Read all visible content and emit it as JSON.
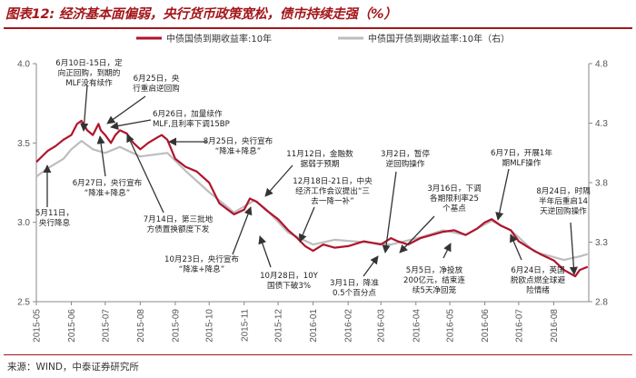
{
  "title": "图表12: 经济基本面偏弱，央行货币政策宽松，债市持续走强（%）",
  "source": "来源：WIND，中泰证券研究所",
  "colors": {
    "brand": "#a3171b",
    "series_main": "#b0142b",
    "series_secondary": "#bdbdbd",
    "text": "#222222"
  },
  "chart_data": {
    "type": "line",
    "x_labels": [
      "2015-05",
      "2015-06",
      "2015-07",
      "2015-08",
      "2015-09",
      "2015-10",
      "2015-11",
      "2015-12",
      "2016-01",
      "2016-02",
      "2016-03",
      "2016-04",
      "2016-05",
      "2016-06",
      "2016-07",
      "2016-08"
    ],
    "ylim_left": [
      2.5,
      4.0
    ],
    "yticks_left": [
      "2.5",
      "3.0",
      "3.5",
      "4.0"
    ],
    "ylim_right": [
      2.8,
      4.8
    ],
    "yticks_right": [
      "2.8",
      "3.3",
      "3.8",
      "4.3",
      "4.8"
    ],
    "legend_position": "top",
    "series": [
      {
        "name": "中债国债到期收益率:10年",
        "axis": "left",
        "points": [
          [
            "2015-05-01",
            3.38
          ],
          [
            "2015-05-11",
            3.45
          ],
          [
            "2015-05-18",
            3.48
          ],
          [
            "2015-05-25",
            3.52
          ],
          [
            "2015-06-01",
            3.55
          ],
          [
            "2015-06-06",
            3.62
          ],
          [
            "2015-06-10",
            3.64
          ],
          [
            "2015-06-15",
            3.58
          ],
          [
            "2015-06-20",
            3.55
          ],
          [
            "2015-06-25",
            3.62
          ],
          [
            "2015-06-27",
            3.58
          ],
          [
            "2015-07-01",
            3.55
          ],
          [
            "2015-07-06",
            3.5
          ],
          [
            "2015-07-10",
            3.55
          ],
          [
            "2015-07-14",
            3.58
          ],
          [
            "2015-07-20",
            3.56
          ],
          [
            "2015-07-26",
            3.5
          ],
          [
            "2015-08-01",
            3.46
          ],
          [
            "2015-08-08",
            3.5
          ],
          [
            "2015-08-15",
            3.53
          ],
          [
            "2015-08-20",
            3.55
          ],
          [
            "2015-08-25",
            3.52
          ],
          [
            "2015-09-01",
            3.4
          ],
          [
            "2015-09-10",
            3.35
          ],
          [
            "2015-09-20",
            3.32
          ],
          [
            "2015-10-01",
            3.25
          ],
          [
            "2015-10-10",
            3.12
          ],
          [
            "2015-10-23",
            3.05
          ],
          [
            "2015-11-01",
            3.08
          ],
          [
            "2015-11-06",
            3.15
          ],
          [
            "2015-11-12",
            3.13
          ],
          [
            "2015-11-20",
            3.08
          ],
          [
            "2015-12-01",
            3.02
          ],
          [
            "2015-12-10",
            2.95
          ],
          [
            "2015-12-18",
            2.9
          ],
          [
            "2015-12-25",
            2.85
          ],
          [
            "2016-01-01",
            2.82
          ],
          [
            "2016-01-10",
            2.86
          ],
          [
            "2016-01-20",
            2.84
          ],
          [
            "2016-02-01",
            2.85
          ],
          [
            "2016-02-15",
            2.88
          ],
          [
            "2016-03-01",
            2.86
          ],
          [
            "2016-03-10",
            2.9
          ],
          [
            "2016-03-16",
            2.88
          ],
          [
            "2016-03-25",
            2.86
          ],
          [
            "2016-04-05",
            2.9
          ],
          [
            "2016-04-15",
            2.92
          ],
          [
            "2016-04-25",
            2.94
          ],
          [
            "2016-05-05",
            2.95
          ],
          [
            "2016-05-15",
            2.92
          ],
          [
            "2016-05-25",
            2.96
          ],
          [
            "2016-06-01",
            3.0
          ],
          [
            "2016-06-07",
            3.02
          ],
          [
            "2016-06-15",
            2.98
          ],
          [
            "2016-06-24",
            2.95
          ],
          [
            "2016-07-01",
            2.88
          ],
          [
            "2016-07-10",
            2.84
          ],
          [
            "2016-07-20",
            2.8
          ],
          [
            "2016-08-01",
            2.76
          ],
          [
            "2016-08-10",
            2.7
          ],
          [
            "2016-08-20",
            2.66
          ],
          [
            "2016-08-24",
            2.7
          ],
          [
            "2016-08-31",
            2.72
          ]
        ]
      },
      {
        "name": "中债国开债到期收益率:10年（右）",
        "axis": "right",
        "points": [
          [
            "2015-05-01",
            3.85
          ],
          [
            "2015-05-11",
            3.92
          ],
          [
            "2015-05-25",
            4.0
          ],
          [
            "2015-06-01",
            4.08
          ],
          [
            "2015-06-10",
            4.15
          ],
          [
            "2015-06-20",
            4.08
          ],
          [
            "2015-07-01",
            4.05
          ],
          [
            "2015-07-14",
            4.1
          ],
          [
            "2015-08-01",
            4.02
          ],
          [
            "2015-08-25",
            4.05
          ],
          [
            "2015-09-10",
            3.9
          ],
          [
            "2015-10-01",
            3.72
          ],
          [
            "2015-10-23",
            3.55
          ],
          [
            "2015-11-10",
            3.65
          ],
          [
            "2015-11-20",
            3.58
          ],
          [
            "2015-12-10",
            3.38
          ],
          [
            "2016-01-01",
            3.28
          ],
          [
            "2016-01-20",
            3.32
          ],
          [
            "2016-02-15",
            3.3
          ],
          [
            "2016-03-10",
            3.28
          ],
          [
            "2016-04-05",
            3.34
          ],
          [
            "2016-04-25",
            3.4
          ],
          [
            "2016-05-15",
            3.36
          ],
          [
            "2016-06-07",
            3.48
          ],
          [
            "2016-06-24",
            3.4
          ],
          [
            "2016-07-15",
            3.22
          ],
          [
            "2016-08-10",
            3.15
          ],
          [
            "2016-08-24",
            3.18
          ],
          [
            "2016-08-31",
            3.2
          ]
        ]
      }
    ],
    "annotations": [
      "6月10日-15日，定向正回购，到期的MLF没有续作",
      "6月25日，央行重启逆回购",
      "6月26日，加量续作MLF,且利率下调15BP",
      "8月25日，央行宣布“降准+降息”",
      "6月27日，央行宣布“降准+降息”",
      "5月11日，央行降息",
      "7月14日，第三批地方债置换额度下发",
      "10月23日，央行宣布“降准+降息”",
      "11月12日，金融数据弱于预期",
      "12月18日-21日，中央经济工作会议提出“三去一降一补”",
      "10月28日，10Y国债下破3%",
      "3月2日，暂停逆回购操作",
      "3月16日，下调各期限利率25个基点",
      "3月1日，降准0.5个百分点",
      "5月5日，净投放200亿元，结束连续5天净回笼",
      "6月7日，开展1年期MLF操作",
      "6月24日，英国脱欧点燃全球避险情绪",
      "8月24日，时隔半年后重启14天逆回购操作"
    ]
  }
}
